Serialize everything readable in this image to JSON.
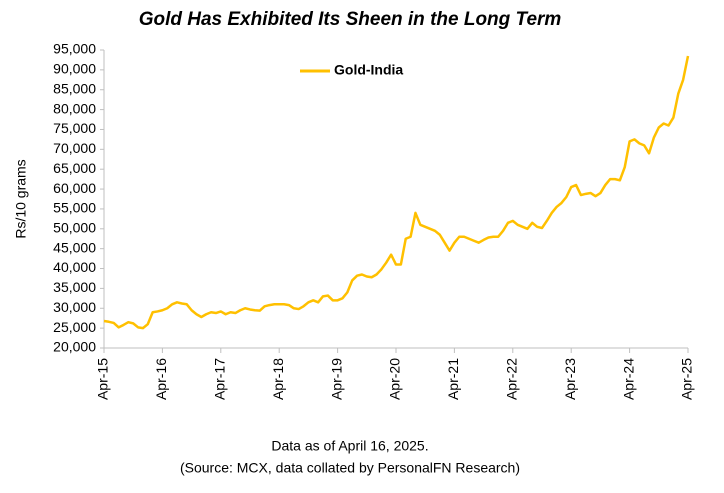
{
  "chart_data": {
    "type": "line",
    "title": "Gold Has Exhibited Its Sheen in the Long Term",
    "y_label": "Rs/10 grams",
    "notes": [
      "Data as of April 16, 2025.",
      "(Source: MCX, data collated by PersonalFN Research)"
    ],
    "legend": "top-left",
    "categories": [
      "Apr-15",
      null,
      null,
      null,
      null,
      null,
      null,
      null,
      null,
      null,
      null,
      null,
      "Apr-16",
      null,
      null,
      null,
      null,
      null,
      null,
      null,
      null,
      null,
      null,
      null,
      "Apr-17",
      null,
      null,
      null,
      null,
      null,
      null,
      null,
      null,
      null,
      null,
      null,
      "Apr-18",
      null,
      null,
      null,
      null,
      null,
      null,
      null,
      null,
      null,
      null,
      null,
      "Apr-19",
      null,
      null,
      null,
      null,
      null,
      null,
      null,
      null,
      null,
      null,
      null,
      "Apr-20",
      null,
      null,
      null,
      null,
      null,
      null,
      null,
      null,
      null,
      null,
      null,
      "Apr-21",
      null,
      null,
      null,
      null,
      null,
      null,
      null,
      null,
      null,
      null,
      null,
      "Apr-22",
      null,
      null,
      null,
      null,
      null,
      null,
      null,
      null,
      null,
      null,
      null,
      "Apr-23",
      null,
      null,
      null,
      null,
      null,
      null,
      null,
      null,
      null,
      null,
      null,
      "Apr-24",
      null,
      null,
      null,
      null,
      null,
      null,
      null,
      null,
      null,
      null,
      null,
      "Apr-25"
    ],
    "series": [
      {
        "name": "Gold-India",
        "color": "#ffc000",
        "values": [
          26800,
          26600,
          26300,
          25200,
          25800,
          26500,
          26200,
          25200,
          25000,
          26000,
          29000,
          29200,
          29500,
          30000,
          31000,
          31500,
          31200,
          31000,
          29500,
          28500,
          27800,
          28500,
          29000,
          28800,
          29200,
          28500,
          29000,
          28800,
          29500,
          30000,
          29700,
          29500,
          29400,
          30500,
          30800,
          31000,
          31000,
          31000,
          30800,
          30000,
          29800,
          30500,
          31500,
          32000,
          31500,
          33000,
          33200,
          32000,
          32000,
          32500,
          34000,
          37000,
          38200,
          38500,
          38000,
          37800,
          38500,
          39800,
          41500,
          43500,
          41000,
          41000,
          47500,
          48000,
          54000,
          51000,
          50500,
          50000,
          49500,
          48500,
          46500,
          44500,
          46500,
          48000,
          48000,
          47500,
          47000,
          46500,
          47200,
          47800,
          48000,
          48000,
          49500,
          51500,
          52000,
          51000,
          50500,
          50000,
          51500,
          50500,
          50200,
          52000,
          54000,
          55500,
          56500,
          58000,
          60500,
          61000,
          58500,
          58800,
          59000,
          58200,
          59000,
          61000,
          62500,
          62500,
          62200,
          65500,
          72000,
          72500,
          71500,
          71000,
          69000,
          73000,
          75500,
          76500,
          76000,
          78000,
          84000,
          87500,
          93500
        ]
      }
    ],
    "ylim": [
      20000,
      95000
    ],
    "yticks": [
      {
        "value": 20000,
        "label": "20,000"
      },
      {
        "value": 25000,
        "label": "25,000"
      },
      {
        "value": 30000,
        "label": "30,000"
      },
      {
        "value": 35000,
        "label": "35,000"
      },
      {
        "value": 40000,
        "label": "40,000"
      },
      {
        "value": 45000,
        "label": "45,000"
      },
      {
        "value": 50000,
        "label": "50,000"
      },
      {
        "value": 55000,
        "label": "55,000"
      },
      {
        "value": 60000,
        "label": "60,000"
      },
      {
        "value": 65000,
        "label": "65,000"
      },
      {
        "value": 70000,
        "label": "70,000"
      },
      {
        "value": 75000,
        "label": "75,000"
      },
      {
        "value": 80000,
        "label": "80,000"
      },
      {
        "value": 85000,
        "label": "85,000"
      },
      {
        "value": 90000,
        "label": "90,000"
      },
      {
        "value": 95000,
        "label": "95,000"
      }
    ],
    "grid": false
  }
}
